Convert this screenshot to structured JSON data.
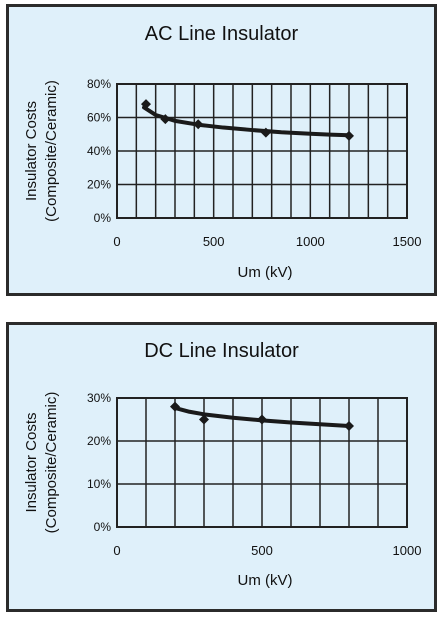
{
  "chart_data": [
    {
      "type": "line",
      "title": "AC Line Insulator",
      "xlabel": "Um (kV)",
      "ylabel": [
        "Insulator Costs",
        "(Composite/Ceramic)"
      ],
      "xlim": [
        0,
        1500
      ],
      "ylim": [
        0,
        80
      ],
      "xticks": [
        0,
        500,
        1000,
        1500
      ],
      "xtick_labels": [
        "0",
        "500",
        "1000",
        "1500"
      ],
      "yticks": [
        0,
        20,
        40,
        60,
        80
      ],
      "ytick_labels": [
        "0%",
        "20%",
        "40%",
        "60%",
        "80%"
      ],
      "grid": true,
      "series": [
        {
          "x": [
            150,
            250,
            420,
            770,
            1200
          ],
          "y": [
            68,
            59,
            56,
            51,
            49
          ],
          "trend_x": [
            140,
            200,
            300,
            420,
            550,
            700,
            850,
            1000,
            1100,
            1200
          ],
          "trend_y": [
            66,
            61.5,
            58,
            55.7,
            54,
            52.5,
            51.2,
            50.3,
            49.8,
            49.4
          ]
        }
      ]
    },
    {
      "type": "line",
      "title": "DC Line Insulator",
      "xlabel": "Um (kV)",
      "ylabel": [
        "Insulator Costs",
        "(Composite/Ceramic)"
      ],
      "xlim": [
        0,
        1000
      ],
      "ylim": [
        0,
        30
      ],
      "xticks": [
        0,
        500,
        1000
      ],
      "xtick_labels": [
        "0",
        "500",
        "1000"
      ],
      "yticks": [
        0,
        10,
        20,
        30
      ],
      "ytick_labels": [
        "0%",
        "10%",
        "20%",
        "30%"
      ],
      "grid": true,
      "series": [
        {
          "x": [
            200,
            300,
            500,
            800
          ],
          "y": [
            28,
            25,
            25,
            23.5
          ],
          "trend_x": [
            200,
            250,
            300,
            400,
            500,
            600,
            700,
            800
          ],
          "trend_y": [
            27.7,
            26.8,
            26.2,
            25.4,
            24.8,
            24.3,
            23.9,
            23.5
          ]
        }
      ]
    }
  ]
}
